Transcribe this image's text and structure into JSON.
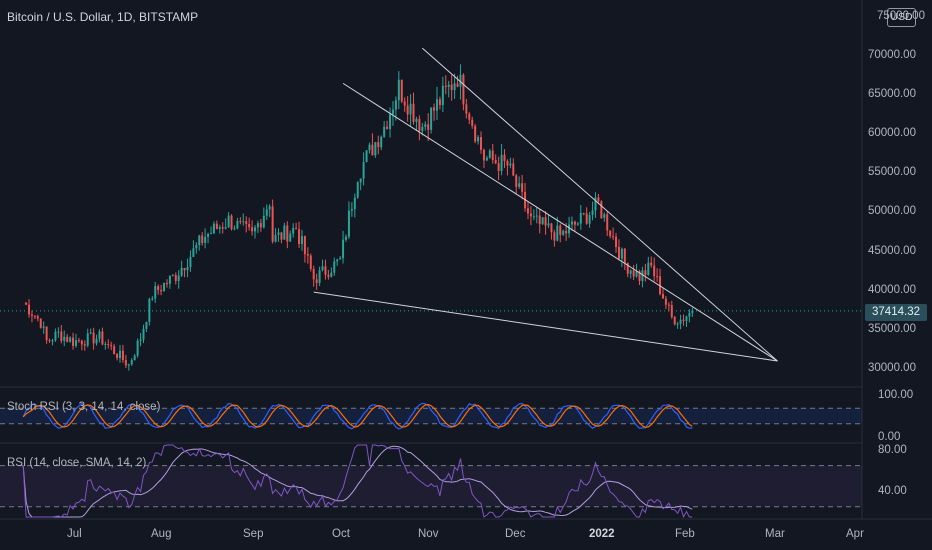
{
  "header": {
    "title": "Bitcoin / U.S. Dollar, 1D, BITSTAMP",
    "currency": "USD"
  },
  "price_axis": {
    "labels": [
      {
        "text": "75000.00",
        "value": 75000
      },
      {
        "text": "70000.00",
        "value": 70000
      },
      {
        "text": "65000.00",
        "value": 65000
      },
      {
        "text": "60000.00",
        "value": 60000
      },
      {
        "text": "55000.00",
        "value": 55000
      },
      {
        "text": "50000.00",
        "value": 50000
      },
      {
        "text": "45000.00",
        "value": 45000
      },
      {
        "text": "40000.00",
        "value": 40000
      },
      {
        "text": "35000.00",
        "value": 35000
      },
      {
        "text": "30000.00",
        "value": 30000
      }
    ],
    "last_price": "37414.32"
  },
  "time_axis": {
    "labels": [
      {
        "text": "Jul",
        "bold": false
      },
      {
        "text": "Aug",
        "bold": false
      },
      {
        "text": "Sep",
        "bold": false
      },
      {
        "text": "Oct",
        "bold": false
      },
      {
        "text": "Nov",
        "bold": false
      },
      {
        "text": "Dec",
        "bold": false
      },
      {
        "text": "2022",
        "bold": true
      },
      {
        "text": "Feb",
        "bold": false
      },
      {
        "text": "Mar",
        "bold": false
      },
      {
        "text": "Apr",
        "bold": false
      }
    ]
  },
  "stoch_rsi": {
    "label": "Stoch RSI (3, 3, 14, 14, close)",
    "scale": [
      "100.00",
      "0.00"
    ]
  },
  "rsi": {
    "label": "RSI (14, close, SMA, 14, 2)",
    "scale": [
      "80.00",
      "40.00"
    ]
  },
  "colors": {
    "background": "#131722",
    "up": "#26a69a",
    "down": "#ef5350",
    "stoch_k": "#2962ff",
    "stoch_d": "#ff6d00",
    "rsi": "#7e57c2",
    "rsi_ma": "#b39ddb",
    "trendline": "#d1d4dc"
  },
  "chart_data": {
    "type": "candlestick",
    "symbol": "BTCUSD",
    "interval": "1D",
    "ylim": [
      28000,
      76000
    ],
    "last_price": 37414.32,
    "trendlines": [
      {
        "from": {
          "date": "2021-10-01",
          "price": 66500
        },
        "to": {
          "date": "2022-02-26",
          "price": 31000
        }
      },
      {
        "from": {
          "date": "2021-10-28",
          "price": 71000
        },
        "to": {
          "date": "2022-02-26",
          "price": 31000
        }
      },
      {
        "from": {
          "date": "2021-09-21",
          "price": 39800
        },
        "to": {
          "date": "2022-02-26",
          "price": 31000
        }
      }
    ],
    "price_path": [
      [
        "2021-06-14",
        38500
      ],
      [
        "2021-06-20",
        36000
      ],
      [
        "2021-06-22",
        33500
      ],
      [
        "2021-06-26",
        34500
      ],
      [
        "2021-07-01",
        33500
      ],
      [
        "2021-07-10",
        34000
      ],
      [
        "2021-07-20",
        30500
      ],
      [
        "2021-07-24",
        34000
      ],
      [
        "2021-07-28",
        39500
      ],
      [
        "2021-08-05",
        42000
      ],
      [
        "2021-08-15",
        47000
      ],
      [
        "2021-08-23",
        49000
      ],
      [
        "2021-08-31",
        47000
      ],
      [
        "2021-09-06",
        51500
      ],
      [
        "2021-09-07",
        46500
      ],
      [
        "2021-09-15",
        48000
      ],
      [
        "2021-09-21",
        41500
      ],
      [
        "2021-09-30",
        43800
      ],
      [
        "2021-10-06",
        55000
      ],
      [
        "2021-10-15",
        61000
      ],
      [
        "2021-10-20",
        66000
      ],
      [
        "2021-10-28",
        61000
      ],
      [
        "2021-11-09",
        67500
      ],
      [
        "2021-11-18",
        57000
      ],
      [
        "2021-11-26",
        56000
      ],
      [
        "2021-12-04",
        49000
      ],
      [
        "2021-12-14",
        47000
      ],
      [
        "2021-12-21",
        49000
      ],
      [
        "2021-12-27",
        51000
      ],
      [
        "2022-01-05",
        43500
      ],
      [
        "2022-01-10",
        41800
      ],
      [
        "2022-01-14",
        43000
      ],
      [
        "2022-01-21",
        36500
      ],
      [
        "2022-01-24",
        36300
      ],
      [
        "2022-01-28",
        37414
      ]
    ],
    "stoch_rsi_range": [
      0,
      100
    ],
    "rsi_range": [
      20,
      90
    ]
  }
}
